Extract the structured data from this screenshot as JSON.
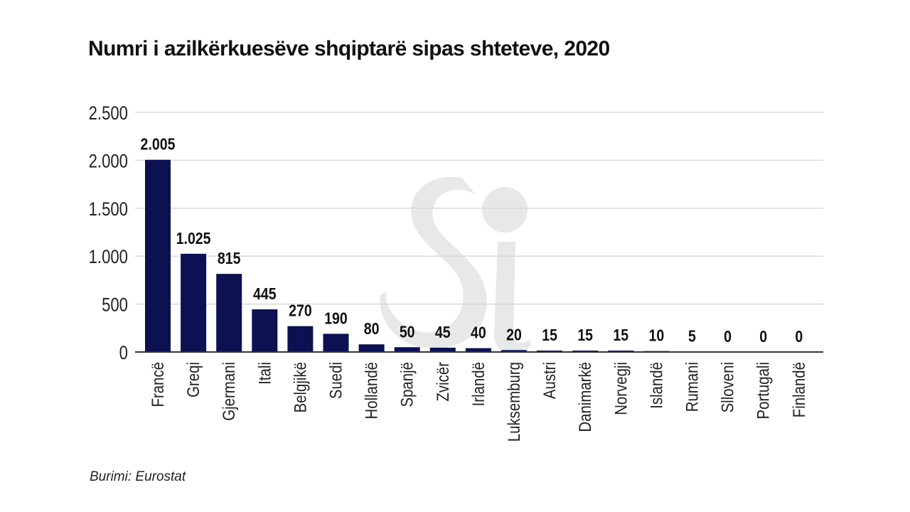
{
  "title": "Numri i azilkërkuesëve shqiptarë sipas shteteve, 2020",
  "source": "Burimi: Eurostat",
  "colors": {
    "bar": "#0c1152",
    "grid": "#d9d9d9",
    "axis": "#333333",
    "text": "#111111",
    "watermark": "#e6e6e6"
  },
  "chart_data": {
    "type": "bar",
    "title": "Numri i azilkërkuesëve shqiptarë sipas shteteve, 2020",
    "xlabel": "",
    "ylabel": "",
    "ylim": [
      0,
      2500
    ],
    "yticks": [
      0,
      500,
      1000,
      1500,
      2000,
      2500
    ],
    "ytick_labels": [
      "0",
      "500",
      "1.000",
      "1.500",
      "2.000",
      "2.500"
    ],
    "grid": true,
    "categories": [
      "Francë",
      "Greqi",
      "Gjermani",
      "Itali",
      "Belgjikë",
      "Suedi",
      "Hollandë",
      "Spanjë",
      "Zvicër",
      "Irlandë",
      "Luksemburg",
      "Austri",
      "Danimarkë",
      "Norvegji",
      "Islandë",
      "Rumani",
      "Slloveni",
      "Portugali",
      "Finlandë"
    ],
    "values": [
      2005,
      1025,
      815,
      445,
      270,
      190,
      80,
      50,
      45,
      40,
      20,
      15,
      15,
      15,
      10,
      5,
      0,
      0,
      0
    ],
    "value_labels": [
      "2.005",
      "1.025",
      "815",
      "445",
      "270",
      "190",
      "80",
      "50",
      "45",
      "40",
      "20",
      "15",
      "15",
      "15",
      "10",
      "5",
      "0",
      "0",
      "0"
    ]
  }
}
